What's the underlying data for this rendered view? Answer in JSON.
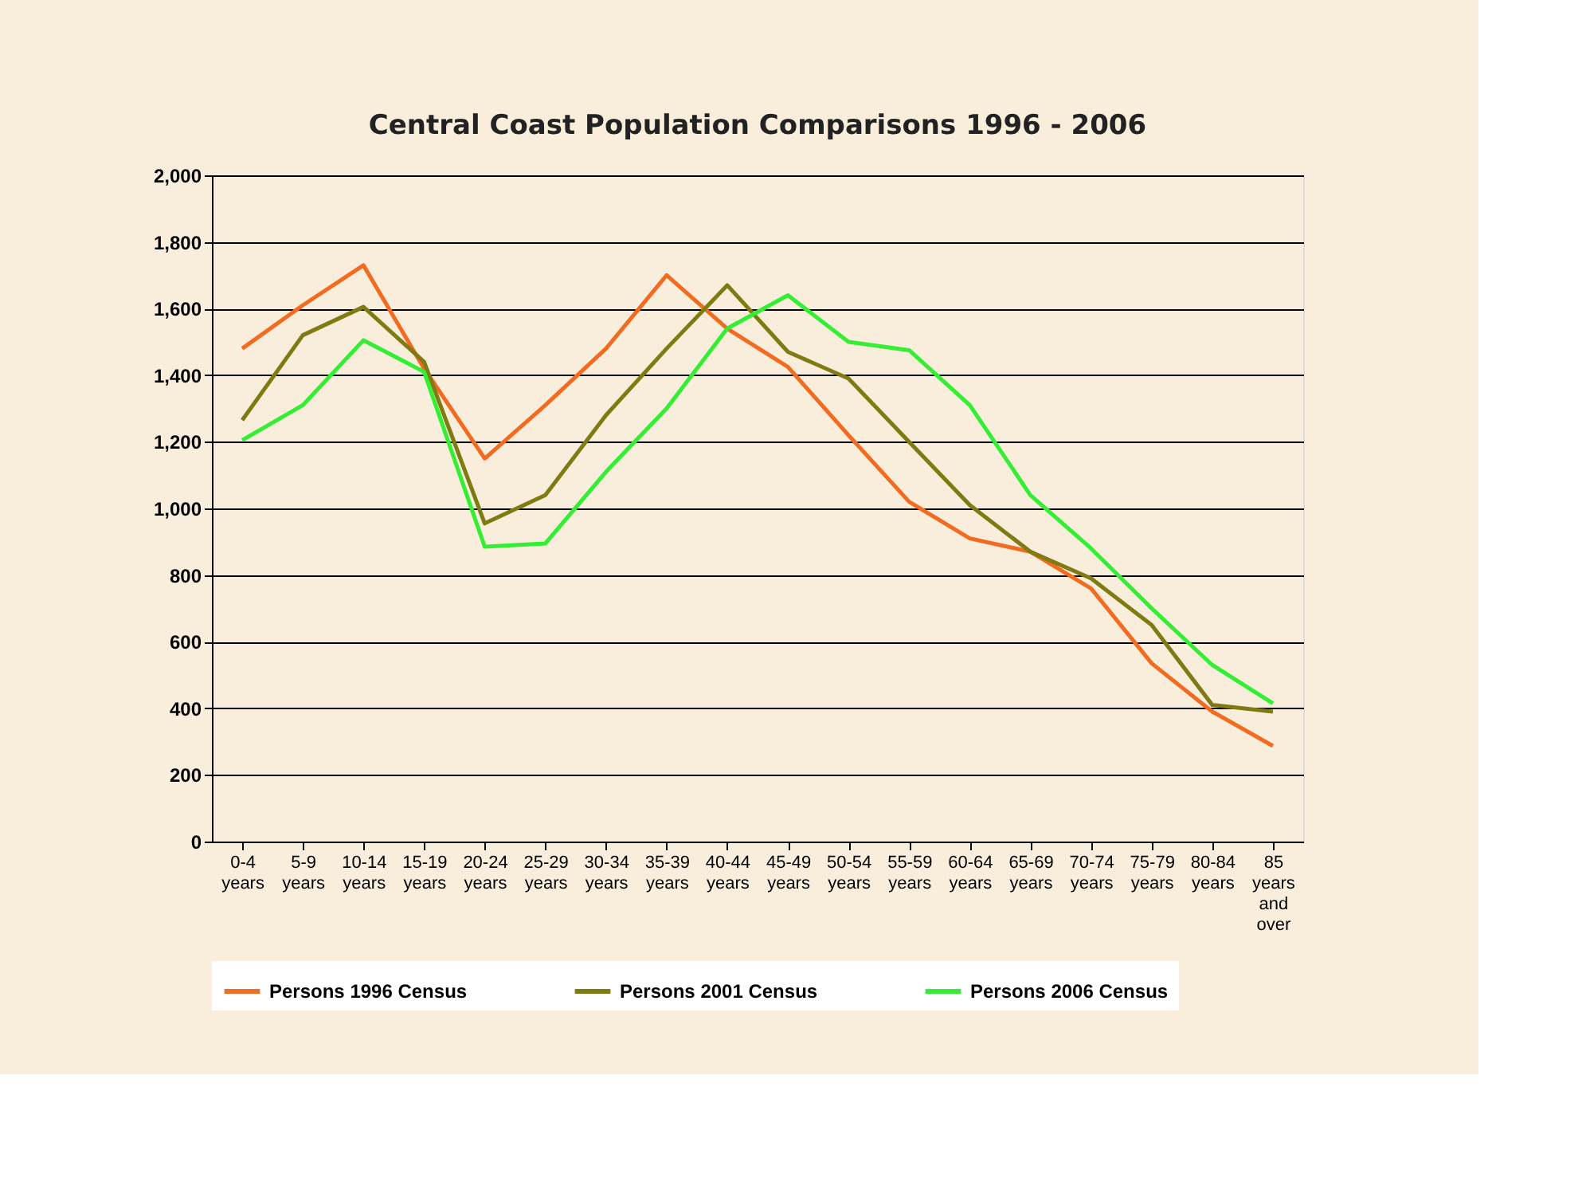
{
  "chart_data": {
    "type": "line",
    "title": "Central Coast Population Comparisons 1996 - 2006",
    "categories": [
      "0-4 years",
      "5-9 years",
      "10-14 years",
      "15-19 years",
      "20-24 years",
      "25-29 years",
      "30-34 years",
      "35-39 years",
      "40-44 years",
      "45-49 years",
      "50-54 years",
      "55-59 years",
      "60-64 years",
      "65-69 years",
      "70-74 years",
      "75-79 years",
      "80-84 years",
      "85 years and over"
    ],
    "series": [
      {
        "name": "Persons 1996 Census",
        "color": "#f26b21",
        "values": [
          1480,
          1610,
          1730,
          1420,
          1150,
          1310,
          1480,
          1700,
          1540,
          1425,
          1220,
          1020,
          910,
          870,
          760,
          535,
          390,
          287
        ]
      },
      {
        "name": "Persons 2001 Census",
        "color": "#7f7a12",
        "values": [
          1265,
          1520,
          1605,
          1440,
          955,
          1040,
          1280,
          1480,
          1670,
          1470,
          1390,
          1200,
          1010,
          870,
          790,
          650,
          410,
          390
        ]
      },
      {
        "name": "Persons 2006 Census",
        "color": "#33ee33",
        "values": [
          1205,
          1310,
          1505,
          1410,
          885,
          895,
          1110,
          1300,
          1540,
          1640,
          1500,
          1475,
          1310,
          1040,
          880,
          700,
          530,
          415
        ]
      }
    ],
    "ylim": [
      0,
      2000
    ],
    "yticks": [
      0,
      200,
      400,
      600,
      800,
      {
        "value": 1000,
        "label": "1,000"
      },
      {
        "value": 1200,
        "label": "1,200"
      },
      {
        "value": 1400,
        "label": "1,400"
      },
      {
        "value": 1600,
        "label": "1,600"
      },
      {
        "value": 1800,
        "label": "1,800"
      },
      {
        "value": 2000,
        "label": "2,000"
      }
    ],
    "grid": "y",
    "legend": "bottom",
    "marker": "none",
    "line_style": "solid"
  }
}
